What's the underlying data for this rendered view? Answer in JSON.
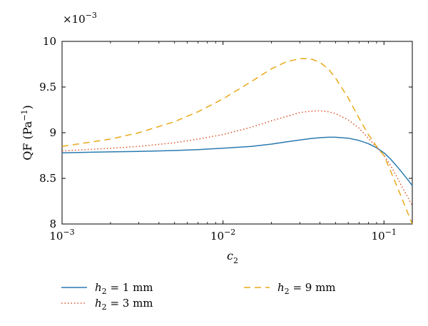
{
  "chart_data": {
    "type": "line",
    "xlabel": {
      "base": "c",
      "sub": "2"
    },
    "ylabel": "QF (Pa",
    "ylabel_exp": "−1",
    "ylabel_close": ")",
    "y_multiplier": {
      "base": "×10",
      "exp": "−3"
    },
    "xscale": "log",
    "xlim": [
      0.001,
      0.15
    ],
    "ylim": [
      8,
      10
    ],
    "x_ticks": [
      {
        "value": 0.001,
        "base": "10",
        "exp": "−3"
      },
      {
        "value": 0.01,
        "base": "10",
        "exp": "−2"
      },
      {
        "value": 0.1,
        "base": "10",
        "exp": "−1"
      }
    ],
    "y_ticks": [
      {
        "value": 8,
        "label": "8"
      },
      {
        "value": 8.5,
        "label": "8.5"
      },
      {
        "value": 9,
        "label": "9"
      },
      {
        "value": 9.5,
        "label": "9.5"
      },
      {
        "value": 10,
        "label": "10"
      }
    ],
    "grid": false,
    "legend_position": "bottom",
    "series": [
      {
        "name": "h2 = 1 mm",
        "legend": {
          "var": "h",
          "sub": "2",
          "rest": " = 1 mm"
        },
        "color": "#2a7ab0",
        "style": "solid",
        "x": [
          0.001,
          0.002,
          0.003,
          0.005,
          0.007,
          0.01,
          0.015,
          0.02,
          0.025,
          0.03,
          0.035,
          0.04,
          0.045,
          0.05,
          0.06,
          0.07,
          0.08,
          0.09,
          0.1,
          0.11,
          0.12,
          0.13,
          0.14,
          0.15
        ],
        "values": [
          8.78,
          8.79,
          8.795,
          8.805,
          8.815,
          8.83,
          8.85,
          8.875,
          8.9,
          8.92,
          8.935,
          8.945,
          8.95,
          8.95,
          8.94,
          8.915,
          8.88,
          8.835,
          8.78,
          8.71,
          8.635,
          8.56,
          8.49,
          8.42
        ]
      },
      {
        "name": "h2 = 3 mm",
        "legend": {
          "var": "h",
          "sub": "2",
          "rest": " = 3 mm"
        },
        "color": "#d9542a",
        "style": "dotted",
        "x": [
          0.001,
          0.002,
          0.003,
          0.005,
          0.007,
          0.01,
          0.015,
          0.02,
          0.025,
          0.03,
          0.035,
          0.04,
          0.045,
          0.05,
          0.06,
          0.07,
          0.08,
          0.09,
          0.1,
          0.11,
          0.12,
          0.13,
          0.14,
          0.15
        ],
        "values": [
          8.8,
          8.83,
          8.85,
          8.89,
          8.93,
          8.98,
          9.06,
          9.13,
          9.18,
          9.22,
          9.235,
          9.24,
          9.23,
          9.21,
          9.14,
          9.05,
          8.94,
          8.84,
          8.75,
          8.64,
          8.52,
          8.4,
          8.3,
          8.2
        ]
      },
      {
        "name": "h2 = 9 mm",
        "legend": {
          "var": "h",
          "sub": "2",
          "rest": " = 9 mm"
        },
        "color": "#e8a91a",
        "style": "dashed",
        "x": [
          0.001,
          0.002,
          0.003,
          0.005,
          0.007,
          0.01,
          0.015,
          0.02,
          0.025,
          0.03,
          0.035,
          0.04,
          0.045,
          0.05,
          0.06,
          0.07,
          0.08,
          0.09,
          0.1,
          0.11,
          0.12,
          0.13,
          0.14,
          0.15
        ],
        "values": [
          8.85,
          8.93,
          9.0,
          9.12,
          9.23,
          9.37,
          9.56,
          9.7,
          9.78,
          9.81,
          9.81,
          9.77,
          9.7,
          9.6,
          9.38,
          9.16,
          8.98,
          8.85,
          8.75,
          8.58,
          8.42,
          8.27,
          8.13,
          8.0
        ]
      }
    ]
  }
}
